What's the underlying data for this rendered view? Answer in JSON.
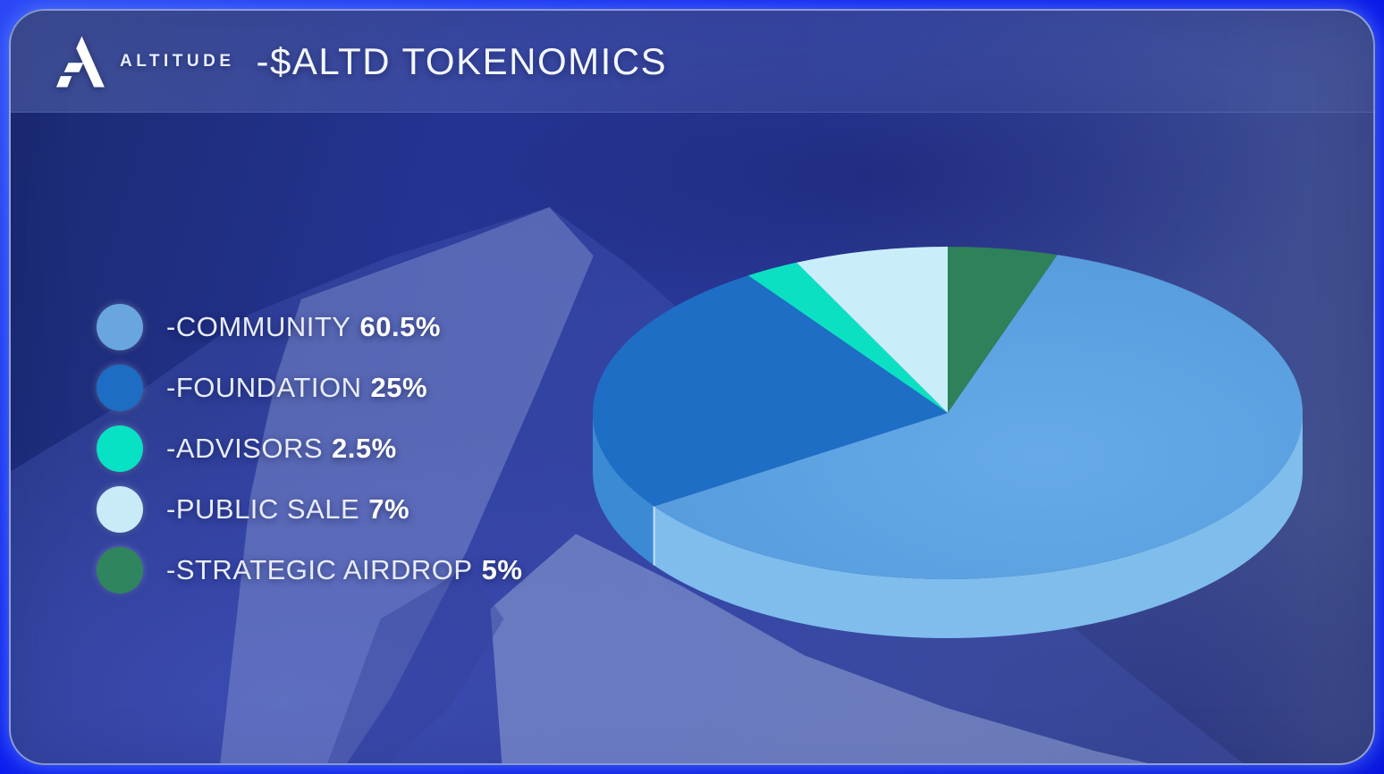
{
  "page": {
    "accent_border_color": "#0A16EC"
  },
  "header": {
    "brand": "ALTITUDE",
    "title": "-$ALTD TOKENOMICS",
    "logo_icon": "altitude-mountain-a-logo"
  },
  "legend": {
    "items": [
      {
        "name": "-COMMUNITY",
        "pct": "60.5%",
        "color": "#69A6E0"
      },
      {
        "name": "-FOUNDATION",
        "pct": "25%",
        "color": "#1D6DC4"
      },
      {
        "name": "-ADVISORS",
        "pct": "2.5%",
        "color": "#06E2C3"
      },
      {
        "name": "-PUBLIC SALE",
        "pct": "7%",
        "color": "#C9EBF7"
      },
      {
        "name": "-STRATEGIC AIRDROP",
        "pct": "5%",
        "color": "#2F855D"
      }
    ]
  },
  "chart_data": {
    "type": "pie",
    "style": "3d",
    "title": "$ALTD TOKENOMICS",
    "categories": [
      "COMMUNITY",
      "FOUNDATION",
      "ADVISORS",
      "PUBLIC SALE",
      "STRATEGIC AIRDROP"
    ],
    "values": [
      60.5,
      25,
      2.5,
      7,
      5
    ],
    "colors": [
      "#5B9FDF",
      "#1E6EC5",
      "#0CE0C3",
      "#C9EEF9",
      "#2E8158"
    ],
    "side_colors": [
      "#7FBDED",
      "#3B8AD4",
      null,
      null,
      null
    ],
    "start_angle_deg": 0,
    "direction": "clockwise",
    "draw_order_from_top_clockwise": [
      "STRATEGIC AIRDROP",
      "COMMUNITY",
      "FOUNDATION",
      "ADVISORS",
      "PUBLIC SALE"
    ],
    "legend_position": "left",
    "labels_on_slices": false
  }
}
